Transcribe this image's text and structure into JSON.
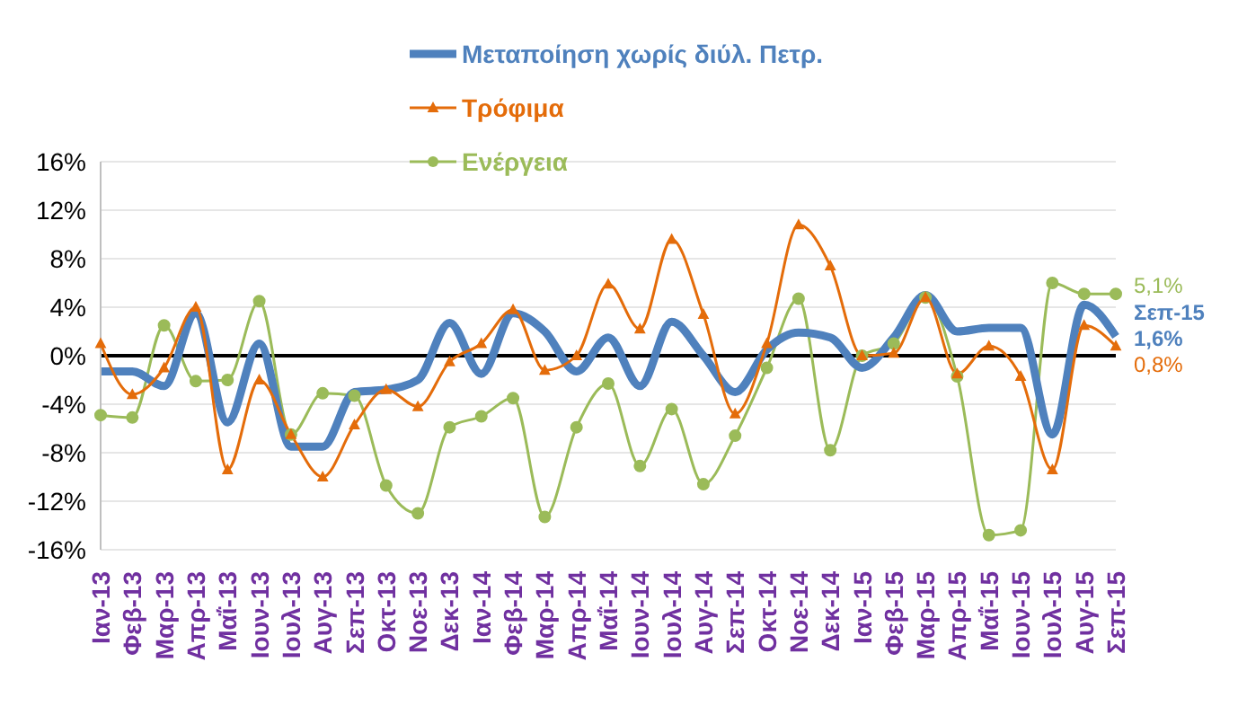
{
  "chart_data": {
    "type": "line",
    "categories": [
      "Ιαν-13",
      "Φεβ-13",
      "Μαρ-13",
      "Απρ-13",
      "Μαΐ-13",
      "Ιουν-13",
      "Ιουλ-13",
      "Αυγ-13",
      "Σεπ-13",
      "Οκτ-13",
      "Νοε-13",
      "Δεκ-13",
      "Ιαν-14",
      "Φεβ-14",
      "Μαρ-14",
      "Απρ-14",
      "Μαΐ-14",
      "Ιουν-14",
      "Ιουλ-14",
      "Αυγ-14",
      "Σεπ-14",
      "Οκτ-14",
      "Νοε-14",
      "Δεκ-14",
      "Ιαν-15",
      "Φεβ-15",
      "Μαρ-15",
      "Απρ-15",
      "Μαΐ-15",
      "Ιουν-15",
      "Ιουλ-15",
      "Αυγ-15",
      "Σεπ-15"
    ],
    "series": [
      {
        "name": "Μεταποίηση χωρίς διύλ. Πετρ.",
        "color": "#4f81bd",
        "marker": "none",
        "values": [
          -1.3,
          -1.3,
          -2.5,
          3.5,
          -5.5,
          1,
          -7.5,
          -7.5,
          -3,
          -2.8,
          -2,
          2.7,
          -1.5,
          3.5,
          2,
          -1.3,
          1.5,
          -2.5,
          2.8,
          0,
          -3,
          0.5,
          1.9,
          1.5,
          -1,
          1.5,
          5,
          2,
          2.3,
          2.3,
          -6.5,
          4.2,
          1.6
        ]
      },
      {
        "name": "Τρόφιμα",
        "color": "#e46c0a",
        "marker": "triangle",
        "values": [
          1,
          -3.2,
          -1,
          4,
          -9.4,
          -2,
          -6.5,
          -10,
          -5.7,
          -2.8,
          -4.2,
          -0.5,
          1,
          3.8,
          -1.2,
          0,
          5.9,
          2.2,
          9.6,
          3.4,
          -4.8,
          1,
          10.8,
          7.4,
          0,
          0.2,
          4.8,
          -1.5,
          0.8,
          -1.7,
          -9.4,
          2.5,
          0.8
        ]
      },
      {
        "name": "Ενέργεια",
        "color": "#9bbb59",
        "marker": "circle",
        "values": [
          -4.9,
          -5.1,
          2.5,
          -2.1,
          -2,
          4.5,
          -6.5,
          -3.1,
          -3.3,
          -10.7,
          -13,
          -5.9,
          -5,
          -3.5,
          -13.3,
          -5.9,
          -2.3,
          -9.1,
          -4.4,
          -10.6,
          -6.6,
          -1,
          4.7,
          -7.8,
          0,
          1,
          4.8,
          -1.7,
          -14.8,
          -14.4,
          6,
          5.1,
          5.1
        ]
      }
    ],
    "ylim": [
      -16,
      16
    ],
    "yticks": [
      {
        "value": -16,
        "label": "-16%"
      },
      {
        "value": -12,
        "label": "-12%"
      },
      {
        "value": -8,
        "label": "-8%"
      },
      {
        "value": -4,
        "label": "-4%"
      },
      {
        "value": 0,
        "label": "0%"
      },
      {
        "value": 4,
        "label": "4%"
      },
      {
        "value": 8,
        "label": "8%"
      },
      {
        "value": 12,
        "label": "12%"
      },
      {
        "value": 16,
        "label": "16%"
      }
    ],
    "grid": "y",
    "legend": "top",
    "line_style": "solid",
    "ref_lines": [
      {
        "axis": "y",
        "value": 0,
        "color": "#000000"
      }
    ],
    "annotations": [
      {
        "text": "5,1%",
        "x": "Σεπ-15",
        "y": 5.1
      },
      {
        "text": "Σεπ-15",
        "x": "Σεπ-15",
        "y": 3.3
      },
      {
        "text": "1,6%",
        "x": "Σεπ-15",
        "y": 1.6
      },
      {
        "text": "0,8%",
        "x": "Σεπ-15",
        "y": 0.8
      }
    ]
  }
}
